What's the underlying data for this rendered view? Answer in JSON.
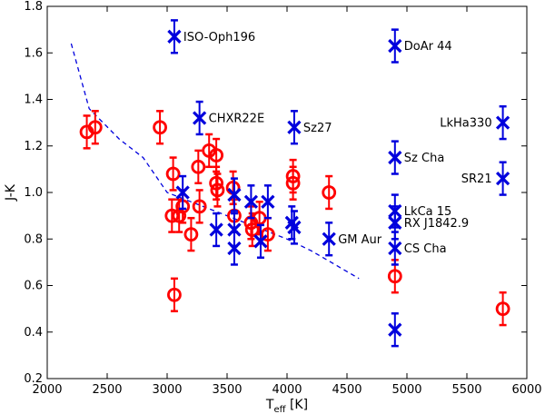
{
  "chart_data": {
    "type": "scatter",
    "title": "",
    "xlabel_main": "T",
    "xlabel_sub": "eff",
    "xlabel_unit": " [K]",
    "ylabel": "J-K",
    "xlim": [
      2000,
      6000
    ],
    "ylim": [
      0.2,
      1.8
    ],
    "xticks": [
      2000,
      2500,
      3000,
      3500,
      4000,
      4500,
      5000,
      5500,
      6000
    ],
    "yticks": [
      0.2,
      0.4,
      0.6,
      0.8,
      1.0,
      1.2,
      1.4,
      1.6,
      1.8
    ],
    "ytick_labels": [
      "0.2",
      "0.4",
      "0.6",
      "0.8",
      "1.0",
      "1.2",
      "1.4",
      "1.6",
      "1.8"
    ],
    "grid": false,
    "colors": {
      "circles": "#ff0000",
      "crosses": "#0000dd",
      "line": "#0000dd"
    },
    "series": [
      {
        "name": "circles",
        "marker": "circle",
        "points": [
          {
            "x": 2330,
            "y": 1.26,
            "err": 0.07
          },
          {
            "x": 2400,
            "y": 1.28,
            "err": 0.07
          },
          {
            "x": 2940,
            "y": 1.28,
            "err": 0.07
          },
          {
            "x": 3050,
            "y": 1.08,
            "err": 0.07
          },
          {
            "x": 3040,
            "y": 0.9,
            "err": 0.07
          },
          {
            "x": 3060,
            "y": 0.56,
            "err": 0.07
          },
          {
            "x": 3100,
            "y": 0.9,
            "err": 0.07
          },
          {
            "x": 3130,
            "y": 0.94,
            "err": 0.07
          },
          {
            "x": 3200,
            "y": 0.82,
            "err": 0.07
          },
          {
            "x": 3260,
            "y": 1.11,
            "err": 0.07
          },
          {
            "x": 3270,
            "y": 0.94,
            "err": 0.07
          },
          {
            "x": 3350,
            "y": 1.18,
            "err": 0.07
          },
          {
            "x": 3410,
            "y": 1.16,
            "err": 0.07
          },
          {
            "x": 3410,
            "y": 1.04,
            "err": 0.07
          },
          {
            "x": 3420,
            "y": 1.01,
            "err": 0.07
          },
          {
            "x": 3550,
            "y": 1.02,
            "err": 0.07
          },
          {
            "x": 3560,
            "y": 0.9,
            "err": 0.07
          },
          {
            "x": 3700,
            "y": 0.87,
            "err": 0.07
          },
          {
            "x": 3710,
            "y": 0.84,
            "err": 0.07
          },
          {
            "x": 3770,
            "y": 0.89,
            "err": 0.07
          },
          {
            "x": 3840,
            "y": 0.82,
            "err": 0.07
          },
          {
            "x": 4050,
            "y": 1.07,
            "err": 0.07
          },
          {
            "x": 4050,
            "y": 1.04,
            "err": 0.07
          },
          {
            "x": 4350,
            "y": 1.0,
            "err": 0.07
          },
          {
            "x": 4900,
            "y": 0.64,
            "err": 0.07
          },
          {
            "x": 5800,
            "y": 0.5,
            "err": 0.07
          }
        ]
      },
      {
        "name": "crosses",
        "marker": "x",
        "points": [
          {
            "x": 3060,
            "y": 1.67,
            "err": 0.07,
            "label": "ISO-Oph196"
          },
          {
            "x": 3270,
            "y": 1.32,
            "err": 0.07,
            "label": "CHXR22E"
          },
          {
            "x": 4060,
            "y": 1.28,
            "err": 0.07,
            "label": "Sz27"
          },
          {
            "x": 4900,
            "y": 1.63,
            "err": 0.07,
            "label": "DoAr 44"
          },
          {
            "x": 4900,
            "y": 1.15,
            "err": 0.07,
            "label": "Sz Cha"
          },
          {
            "x": 4900,
            "y": 0.92,
            "err": 0.07,
            "label": "LkCa 15"
          },
          {
            "x": 4900,
            "y": 0.87,
            "err": 0.07,
            "label": "RX J1842.9"
          },
          {
            "x": 4900,
            "y": 0.76,
            "err": 0.07,
            "label": "CS Cha"
          },
          {
            "x": 4900,
            "y": 0.41,
            "err": 0.07,
            "label": ""
          },
          {
            "x": 4350,
            "y": 0.8,
            "err": 0.07,
            "label": "GM Aur"
          },
          {
            "x": 5800,
            "y": 1.3,
            "err": 0.07,
            "label": "LkHa330"
          },
          {
            "x": 5800,
            "y": 1.06,
            "err": 0.07,
            "label": "SR21"
          },
          {
            "x": 3130,
            "y": 1.0,
            "err": 0.07,
            "label": ""
          },
          {
            "x": 3410,
            "y": 0.84,
            "err": 0.07,
            "label": ""
          },
          {
            "x": 3560,
            "y": 0.99,
            "err": 0.07,
            "label": ""
          },
          {
            "x": 3560,
            "y": 0.84,
            "err": 0.07,
            "label": ""
          },
          {
            "x": 3560,
            "y": 0.76,
            "err": 0.07,
            "label": ""
          },
          {
            "x": 3700,
            "y": 0.96,
            "err": 0.07,
            "label": ""
          },
          {
            "x": 3780,
            "y": 0.79,
            "err": 0.07,
            "label": ""
          },
          {
            "x": 3840,
            "y": 0.96,
            "err": 0.07,
            "label": ""
          },
          {
            "x": 4040,
            "y": 0.87,
            "err": 0.07,
            "label": ""
          },
          {
            "x": 4060,
            "y": 0.85,
            "err": 0.07,
            "label": ""
          }
        ]
      }
    ],
    "line": {
      "style": "dashed",
      "x": [
        2200,
        2350,
        2600,
        2800,
        3000,
        3200,
        3400,
        3600,
        3800,
        4000,
        4200,
        4400,
        4600
      ],
      "y": [
        1.64,
        1.36,
        1.23,
        1.15,
        1.0,
        0.96,
        0.92,
        0.88,
        0.84,
        0.8,
        0.75,
        0.69,
        0.63
      ]
    }
  }
}
